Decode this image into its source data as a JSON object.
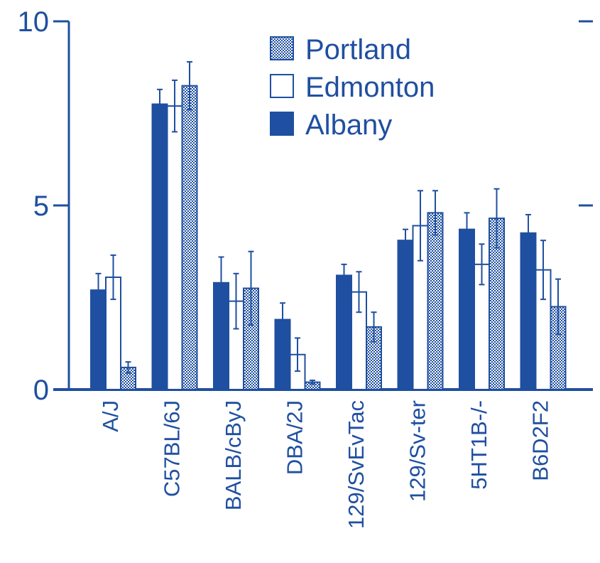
{
  "chart_data": {
    "type": "bar",
    "title": "",
    "xlabel": "",
    "ylabel": "",
    "ylim": [
      0,
      10
    ],
    "yticks": [
      0,
      5,
      10
    ],
    "grid": false,
    "legend_position": "top-right",
    "legend_order": [
      "Portland",
      "Edmonton",
      "Albany"
    ],
    "categories": [
      "A/J",
      "C57BL/6J",
      "BALB/cByJ",
      "DBA/2J",
      "129/SvEvTac",
      "129/Sv-ter",
      "5HT1B-/-",
      "B6D2F2"
    ],
    "series": [
      {
        "name": "Albany",
        "fill": "solid",
        "values": [
          2.7,
          7.75,
          2.9,
          1.9,
          3.1,
          4.05,
          4.35,
          4.25
        ],
        "errors": [
          0.45,
          0.4,
          0.7,
          0.45,
          0.3,
          0.3,
          0.45,
          0.5
        ]
      },
      {
        "name": "Edmonton",
        "fill": "open",
        "values": [
          3.05,
          7.7,
          2.4,
          0.95,
          2.65,
          4.45,
          3.4,
          3.25
        ],
        "errors": [
          0.6,
          0.7,
          0.75,
          0.45,
          0.55,
          0.95,
          0.55,
          0.8
        ]
      },
      {
        "name": "Portland",
        "fill": "stippled",
        "values": [
          0.6,
          8.25,
          2.75,
          0.2,
          1.7,
          4.8,
          4.65,
          2.25
        ],
        "errors": [
          0.15,
          0.65,
          1.0,
          0.05,
          0.4,
          0.6,
          0.8,
          0.75
        ]
      }
    ]
  },
  "colors": {
    "primary": "#1f4fa0",
    "background": "#ffffff"
  }
}
